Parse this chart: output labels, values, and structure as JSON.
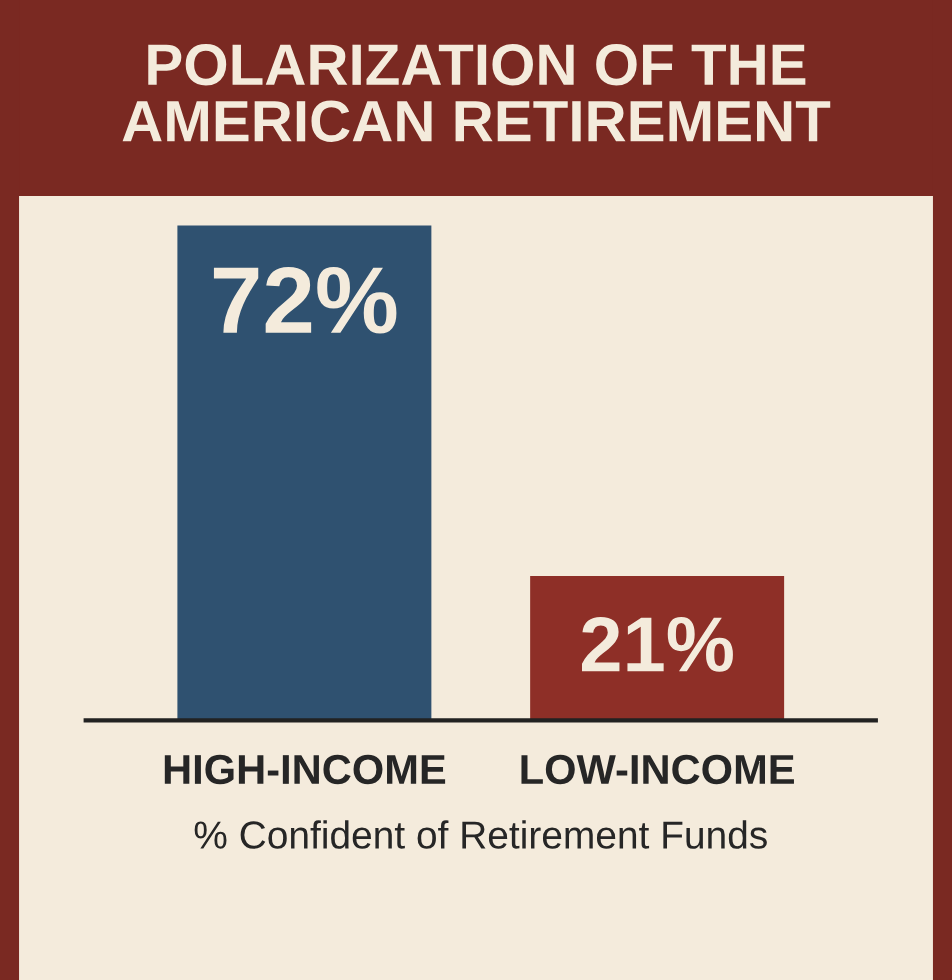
{
  "chart_data": {
    "type": "bar",
    "title": "POLARIZATION OF THE\nAMERICAN RETIREMENT",
    "xlabel": "% Confident of Retirement Funds",
    "categories": [
      "HIGH-INCOME",
      "LOW-INCOME"
    ],
    "values": [
      72,
      21
    ],
    "colors": [
      "#2f5170",
      "#8e2f27"
    ],
    "value_labels": [
      "72%",
      "21%"
    ],
    "grid": false,
    "legend": false
  }
}
